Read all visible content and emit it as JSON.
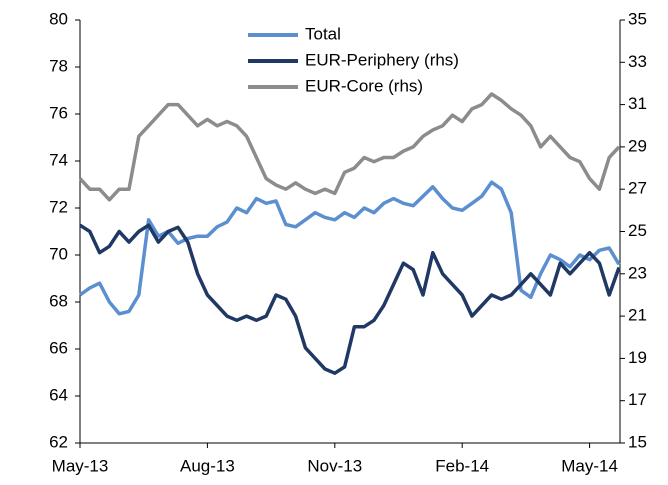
{
  "chart_data": {
    "type": "line",
    "categories": [
      "May-13",
      null,
      null,
      null,
      null,
      null,
      null,
      null,
      null,
      null,
      null,
      null,
      null,
      "Aug-13",
      null,
      null,
      null,
      null,
      null,
      null,
      null,
      null,
      null,
      null,
      null,
      null,
      "Nov-13",
      null,
      null,
      null,
      null,
      null,
      null,
      null,
      null,
      null,
      null,
      null,
      null,
      "Feb-14",
      null,
      null,
      null,
      null,
      null,
      null,
      null,
      null,
      null,
      null,
      null,
      null,
      "May-14",
      null,
      null,
      null
    ],
    "series": [
      {
        "name": "Total",
        "color": "#5b8fd0",
        "axis": "y",
        "values": [
          68.3,
          68.6,
          68.8,
          68.0,
          67.5,
          67.6,
          68.3,
          71.5,
          70.8,
          71.0,
          70.5,
          70.7,
          70.8,
          70.8,
          71.2,
          71.4,
          72.0,
          71.8,
          72.4,
          72.2,
          72.3,
          71.3,
          71.2,
          71.5,
          71.8,
          71.6,
          71.5,
          71.8,
          71.6,
          72.0,
          71.8,
          72.2,
          72.4,
          72.2,
          72.1,
          72.5,
          72.9,
          72.4,
          72.0,
          71.9,
          72.2,
          72.5,
          73.1,
          72.8,
          71.8,
          68.5,
          68.2,
          69.2,
          70.0,
          69.8,
          69.5,
          70.0,
          69.8,
          70.2,
          70.3,
          69.6
        ]
      },
      {
        "name": "EUR-Periphery (rhs)",
        "color": "#1f3864",
        "axis": "y2",
        "values": [
          25.3,
          25.0,
          24.0,
          24.3,
          25.0,
          24.5,
          25.0,
          25.3,
          24.5,
          25.0,
          25.2,
          24.5,
          23.0,
          22.0,
          21.5,
          21.0,
          20.8,
          21.0,
          20.8,
          21.0,
          22.0,
          21.8,
          21.0,
          19.5,
          19.0,
          18.5,
          18.3,
          18.6,
          20.5,
          20.5,
          20.8,
          21.5,
          22.5,
          23.5,
          23.2,
          22.0,
          24.0,
          23.0,
          22.5,
          22.0,
          21.0,
          21.5,
          22.0,
          21.8,
          22.0,
          22.5,
          23.0,
          22.5,
          22.0,
          23.5,
          23.0,
          23.5,
          24.0,
          23.5,
          22.0,
          23.3
        ]
      },
      {
        "name": "EUR-Core (rhs)",
        "color": "#8c8c8c",
        "axis": "y2",
        "values": [
          27.5,
          27.0,
          27.0,
          26.5,
          27.0,
          27.0,
          29.5,
          30.0,
          30.5,
          31.0,
          31.0,
          30.5,
          30.0,
          30.3,
          30.0,
          30.2,
          30.0,
          29.5,
          28.5,
          27.5,
          27.2,
          27.0,
          27.3,
          27.0,
          26.8,
          27.0,
          26.8,
          27.8,
          28.0,
          28.5,
          28.3,
          28.5,
          28.5,
          28.8,
          29.0,
          29.5,
          29.8,
          30.0,
          30.5,
          30.2,
          30.8,
          31.0,
          31.5,
          31.2,
          30.8,
          30.5,
          30.0,
          29.0,
          29.5,
          29.0,
          28.5,
          28.3,
          27.5,
          27.0,
          28.5,
          29.0
        ]
      }
    ],
    "ylim": [
      62,
      80
    ],
    "yticks": [
      62,
      64,
      66,
      68,
      70,
      72,
      74,
      76,
      78,
      80
    ],
    "y2lim": [
      15,
      35
    ],
    "y2ticks": [
      15,
      17,
      19,
      21,
      23,
      25,
      27,
      29,
      31,
      33,
      35
    ],
    "grid": false
  }
}
